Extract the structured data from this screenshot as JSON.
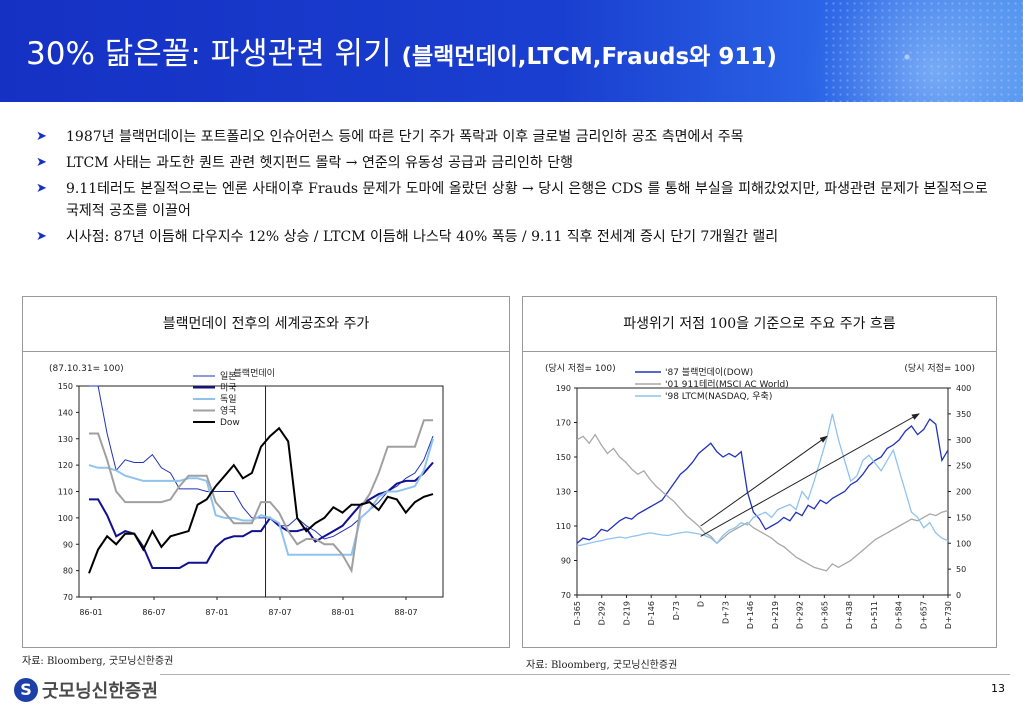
{
  "title": {
    "main": "30% 닮은꼴: 파생관련 위기 ",
    "sub": "(블랙먼데이,LTCM,Frauds와 911)"
  },
  "bullets": [
    "1987년 블랙먼데이는 포트폴리오 인슈어런스 등에 따른 단기 주가 폭락과 이후 글로벌 금리인하 공조 측면에서 주목",
    "LTCM 사태는 과도한 퀀트 관련 헷지펀드 몰락 → 연준의 유동성 공급과 금리인하 단행",
    "9.11테러도 본질적으로는 엔론 사태이후 Frauds 문제가 도마에 올랐던 상황 → 당시 은행은 CDS 를 통해 부실을 피해갔었지만, 파생관련 문제가 본질적으로 국제적 공조를 이끌어",
    "시사점: 87년 이듬해 다우지수 12% 상승 / LTCM 이듬해 나스닥 40% 폭등 / 9.11 직후 전세계 증시 단기 7개월간 랠리"
  ],
  "colors": {
    "header": "#1531c4",
    "japan": "#2233bb",
    "us": "#11118f",
    "germany": "#8fc3ee",
    "uk": "#a0a0a0",
    "dow": "#000000"
  },
  "source_left": "자료: Bloomberg, 굿모닝신한증권",
  "source_right": "자료: Bloomberg, 굿모닝신한증권",
  "footer": {
    "logo": "굿모닝신한증권",
    "logo_mark": "S",
    "page": "13"
  },
  "chart_data": [
    {
      "type": "line",
      "title": "블랙먼데이 전후의 세계공조와 주가",
      "note": "(87.10.31= 100)",
      "event_label": "블랙먼데이",
      "event_x": 19.5,
      "x_tick_labels": [
        "86-01",
        "86-07",
        "87-01",
        "87-07",
        "88-01",
        "88-07"
      ],
      "ylim": [
        70,
        150
      ],
      "yticks": [
        70,
        80,
        90,
        100,
        110,
        120,
        130,
        140,
        150
      ],
      "series": [
        {
          "name": "일본",
          "color_key": "japan",
          "width": 1,
          "values": [
            150,
            150,
            132,
            118,
            122,
            121,
            121,
            124,
            119,
            117,
            111,
            111,
            111,
            110,
            110,
            110,
            110,
            104,
            100,
            100,
            100,
            97,
            97,
            100,
            97,
            95,
            92,
            93,
            95,
            97,
            100,
            103,
            106,
            110,
            112,
            115,
            117,
            122,
            131
          ]
        },
        {
          "name": "미국",
          "color_key": "us",
          "width": 2,
          "values": [
            107,
            107,
            101,
            93,
            95,
            94,
            89,
            81,
            81,
            81,
            81,
            83,
            83,
            83,
            89,
            92,
            93,
            93,
            95,
            95,
            100,
            97,
            95,
            95,
            96,
            91,
            93,
            95,
            97,
            101,
            105,
            107,
            109,
            110,
            113,
            114,
            114,
            117,
            121
          ]
        },
        {
          "name": "독일",
          "color_key": "germany",
          "width": 2,
          "values": [
            120,
            119,
            119,
            118,
            116,
            115,
            114,
            114,
            114,
            114,
            114,
            115,
            115,
            114,
            101,
            100,
            100,
            99,
            99,
            101,
            100,
            98,
            86,
            86,
            86,
            86,
            86,
            86,
            86,
            86,
            100,
            103,
            108,
            110,
            110,
            111,
            112,
            118,
            130
          ]
        },
        {
          "name": "영국",
          "color_key": "uk",
          "width": 2,
          "values": [
            132,
            132,
            122,
            110,
            106,
            106,
            106,
            106,
            106,
            107,
            112,
            116,
            116,
            116,
            106,
            102,
            98,
            98,
            98,
            106,
            106,
            102,
            95,
            90,
            92,
            92,
            90,
            90,
            86,
            80,
            104,
            109,
            117,
            127,
            127,
            127,
            127,
            137,
            137
          ]
        },
        {
          "name": "Dow",
          "color_key": "dow",
          "width": 2,
          "values": [
            79,
            88,
            93,
            90,
            94,
            94,
            88,
            95,
            89,
            93,
            94,
            95,
            105,
            107,
            112,
            116,
            120,
            115,
            117,
            127,
            131,
            134,
            129,
            100,
            95,
            98,
            100,
            104,
            102,
            105,
            105,
            106,
            103,
            108,
            107,
            102,
            106,
            108,
            109
          ]
        }
      ]
    },
    {
      "type": "line",
      "title": "파생위기 저점 100을 기준으로 주요 주가 흐름",
      "note_left": "(당시 저점= 100)",
      "note_right": "(당시 저점= 100)",
      "x_tick_labels": [
        "D-365",
        "D-292",
        "D-219",
        "D-146",
        "D-73",
        "D",
        "D+73",
        "D+146",
        "D+219",
        "D+292",
        "D+365",
        "D+438",
        "D+511",
        "D+584",
        "D+657",
        "D+730"
      ],
      "ylim_left": [
        70,
        190
      ],
      "yticks_left": [
        70,
        90,
        110,
        130,
        150,
        170,
        190
      ],
      "ylim_right": [
        0,
        400
      ],
      "yticks_right": [
        0,
        50,
        100,
        150,
        200,
        250,
        300,
        350,
        400
      ],
      "series": [
        {
          "name": "'87 블랙먼데이(DOW)",
          "color": "#2233bb",
          "axis": "left",
          "values": [
            100,
            103,
            102,
            104,
            108,
            107,
            110,
            113,
            115,
            114,
            117,
            119,
            121,
            123,
            125,
            130,
            135,
            140,
            143,
            147,
            152,
            155,
            158,
            153,
            150,
            152,
            150,
            153,
            130,
            118,
            114,
            108,
            110,
            112,
            115,
            113,
            118,
            116,
            122,
            120,
            125,
            123,
            126,
            128,
            130,
            134,
            136,
            140,
            145,
            148,
            150,
            155,
            157,
            160,
            165,
            168,
            163,
            166,
            172,
            169,
            148,
            154
          ]
        },
        {
          "name": "'01 911테러(MSCI AC World)",
          "color": "#a8a8a8",
          "axis": "left",
          "values": [
            160,
            162,
            158,
            163,
            157,
            152,
            155,
            150,
            147,
            143,
            140,
            142,
            137,
            133,
            130,
            127,
            124,
            120,
            116,
            113,
            110,
            106,
            104,
            100,
            103,
            106,
            108,
            110,
            112,
            109,
            107,
            105,
            103,
            100,
            98,
            95,
            92,
            90,
            88,
            86,
            85,
            84,
            88,
            86,
            88,
            90,
            93,
            96,
            99,
            102,
            104,
            106,
            108,
            110,
            112,
            114,
            113,
            115,
            117,
            116,
            118,
            119
          ]
        },
        {
          "name": "'98 LTCM(NASDAQ, 우축)",
          "color": "#8fc3ee",
          "axis": "right",
          "values": [
            95,
            97,
            100,
            103,
            105,
            108,
            110,
            112,
            110,
            113,
            115,
            118,
            120,
            118,
            116,
            115,
            118,
            120,
            122,
            120,
            118,
            115,
            110,
            100,
            115,
            125,
            130,
            140,
            135,
            150,
            155,
            160,
            150,
            165,
            170,
            175,
            165,
            200,
            185,
            220,
            260,
            300,
            350,
            300,
            260,
            220,
            230,
            260,
            270,
            255,
            240,
            260,
            280,
            240,
            200,
            160,
            150,
            130,
            140,
            120,
            110,
            105
          ]
        }
      ]
    }
  ]
}
